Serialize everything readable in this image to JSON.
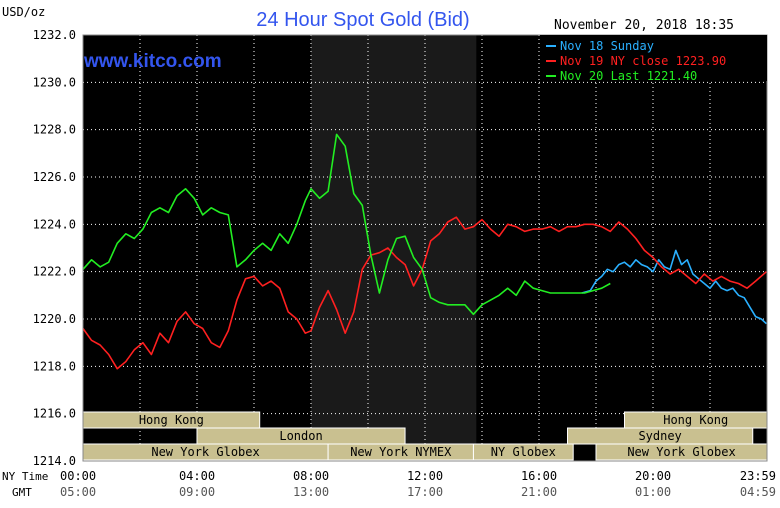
{
  "chart_data": {
    "type": "line",
    "title": "24 Hour Spot Gold (Bid)",
    "watermark": "www.kitco.com",
    "timestamp": "November 20, 2018 18:35",
    "ylabel": "USD/oz",
    "ylim": [
      1214,
      1232
    ],
    "yticks": [
      "1232.0",
      "1230.0",
      "1228.0",
      "1226.0",
      "1224.0",
      "1222.0",
      "1220.0",
      "1218.0",
      "1216.0",
      "1214.0"
    ],
    "xlim": [
      0,
      24
    ],
    "xaxis_row_labels": [
      "NY Time",
      "GMT"
    ],
    "xticks_ny": [
      "00:00",
      "04:00",
      "08:00",
      "12:00",
      "16:00",
      "20:00",
      "23:59"
    ],
    "xticks_gmt": [
      "05:00",
      "09:00",
      "13:00",
      "17:00",
      "21:00",
      "01:00",
      "04:59"
    ],
    "grid": true,
    "legend_position": "top-right",
    "colors": {
      "background": "#000000",
      "frame": "#ffffff",
      "title": "#3355ee",
      "session_fill": "#c9c090",
      "highlight": "#1a1a1a"
    },
    "series": [
      {
        "name": "Nov 18 Sunday",
        "legend": "Nov 18 Sunday",
        "color": "#2ab0ff",
        "x": [
          17.5,
          17.8,
          18.0,
          18.2,
          18.4,
          18.6,
          18.8,
          19.0,
          19.2,
          19.4,
          19.6,
          19.8,
          20.0,
          20.2,
          20.4,
          20.6,
          20.8,
          21.0,
          21.2,
          21.4,
          21.6,
          21.8,
          22.0,
          22.2,
          22.4,
          22.6,
          22.8,
          23.0,
          23.2,
          23.4,
          23.6,
          23.8,
          23.98
        ],
        "y": [
          1221.1,
          1221.2,
          1221.6,
          1221.8,
          1222.1,
          1222.0,
          1222.3,
          1222.4,
          1222.2,
          1222.5,
          1222.3,
          1222.2,
          1222.0,
          1222.5,
          1222.2,
          1222.1,
          1222.9,
          1222.3,
          1222.5,
          1221.9,
          1221.7,
          1221.5,
          1221.3,
          1221.6,
          1221.3,
          1221.2,
          1221.3,
          1221.0,
          1220.9,
          1220.5,
          1220.1,
          1220.0,
          1219.8
        ]
      },
      {
        "name": "Nov 19 NY close",
        "legend": "Nov 19 NY close 1223.90",
        "color": "#ff2020",
        "x": [
          0.0,
          0.3,
          0.6,
          0.9,
          1.2,
          1.5,
          1.8,
          2.1,
          2.4,
          2.7,
          3.0,
          3.3,
          3.6,
          3.9,
          4.2,
          4.5,
          4.8,
          5.1,
          5.4,
          5.7,
          6.0,
          6.3,
          6.6,
          6.9,
          7.2,
          7.5,
          7.8,
          8.0,
          8.3,
          8.6,
          8.9,
          9.2,
          9.5,
          9.8,
          10.1,
          10.4,
          10.7,
          11.0,
          11.3,
          11.6,
          11.9,
          12.2,
          12.5,
          12.8,
          13.1,
          13.4,
          13.7,
          14.0,
          14.3,
          14.6,
          14.9,
          15.2,
          15.5,
          15.8,
          16.1,
          16.4,
          16.7,
          17.0,
          17.3,
          17.6,
          17.9,
          18.2,
          18.5,
          18.8,
          19.1,
          19.4,
          19.7,
          20.0,
          20.3,
          20.6,
          20.9,
          21.2,
          21.5,
          21.8,
          22.1,
          22.4,
          22.7,
          23.0,
          23.3,
          23.6,
          23.98
        ],
        "y": [
          1219.6,
          1219.1,
          1218.9,
          1218.5,
          1217.9,
          1218.2,
          1218.7,
          1219.0,
          1218.5,
          1219.4,
          1219.0,
          1219.9,
          1220.3,
          1219.8,
          1219.6,
          1219.0,
          1218.8,
          1219.5,
          1220.8,
          1221.7,
          1221.8,
          1221.4,
          1221.6,
          1221.3,
          1220.3,
          1220.0,
          1219.4,
          1219.5,
          1220.5,
          1221.2,
          1220.4,
          1219.4,
          1220.3,
          1222.1,
          1222.7,
          1222.8,
          1223.0,
          1222.6,
          1222.3,
          1221.4,
          1222.1,
          1223.3,
          1223.6,
          1224.1,
          1224.3,
          1223.8,
          1223.9,
          1224.2,
          1223.8,
          1223.5,
          1224.0,
          1223.9,
          1223.7,
          1223.8,
          1223.8,
          1223.9,
          1223.7,
          1223.9,
          1223.9,
          1224.0,
          1224.0,
          1223.9,
          1223.7,
          1224.1,
          1223.8,
          1223.4,
          1222.9,
          1222.6,
          1222.2,
          1221.9,
          1222.1,
          1221.8,
          1221.5,
          1221.9,
          1221.6,
          1221.8,
          1221.6,
          1221.5,
          1221.3,
          1221.6,
          1222.0
        ]
      },
      {
        "name": "Nov 20 Last",
        "legend": "Nov 20 Last 1221.40",
        "color": "#22ee22",
        "x": [
          0.0,
          0.3,
          0.6,
          0.9,
          1.2,
          1.5,
          1.8,
          2.1,
          2.4,
          2.7,
          3.0,
          3.3,
          3.6,
          3.9,
          4.2,
          4.5,
          4.8,
          5.1,
          5.4,
          5.7,
          6.0,
          6.3,
          6.6,
          6.9,
          7.2,
          7.5,
          7.8,
          8.0,
          8.3,
          8.6,
          8.9,
          9.2,
          9.5,
          9.8,
          10.1,
          10.4,
          10.7,
          11.0,
          11.3,
          11.6,
          11.9,
          12.2,
          12.5,
          12.8,
          13.1,
          13.4,
          13.7,
          14.0,
          14.3,
          14.6,
          14.9,
          15.2,
          15.5,
          15.8,
          16.1,
          16.4,
          16.7,
          17.0,
          17.3,
          17.6,
          17.9,
          18.2,
          18.5
        ],
        "y": [
          1222.1,
          1222.5,
          1222.2,
          1222.4,
          1223.2,
          1223.6,
          1223.4,
          1223.8,
          1224.5,
          1224.7,
          1224.5,
          1225.2,
          1225.5,
          1225.1,
          1224.4,
          1224.7,
          1224.5,
          1224.4,
          1222.2,
          1222.5,
          1222.9,
          1223.2,
          1222.9,
          1223.6,
          1223.2,
          1224.0,
          1225.0,
          1225.5,
          1225.1,
          1225.4,
          1227.8,
          1227.3,
          1225.3,
          1224.8,
          1222.7,
          1221.1,
          1222.5,
          1223.4,
          1223.5,
          1222.6,
          1222.1,
          1220.9,
          1220.7,
          1220.6,
          1220.6,
          1220.6,
          1220.2,
          1220.6,
          1220.8,
          1221.0,
          1221.3,
          1221.0,
          1221.6,
          1221.3,
          1221.2,
          1221.1,
          1221.1,
          1221.1,
          1221.1,
          1221.1,
          1221.2,
          1221.3,
          1221.5
        ]
      }
    ],
    "sessions": [
      {
        "label": "Hong Kong",
        "row": 0,
        "start": 0.0,
        "end": 6.2
      },
      {
        "label": "London",
        "row": 1,
        "start": 4.0,
        "end": 11.3
      },
      {
        "label": "New York Globex",
        "row": 2,
        "start": 0.0,
        "end": 8.6
      },
      {
        "label": "New York NYMEX",
        "row": 2,
        "start": 8.6,
        "end": 13.7
      },
      {
        "label": "NY Globex",
        "row": 2,
        "start": 13.7,
        "end": 17.2
      },
      {
        "label": "Hong Kong",
        "row": 0,
        "start": 19.0,
        "end": 24.0
      },
      {
        "label": "Sydney",
        "row": 1,
        "start": 17.0,
        "end": 23.5
      },
      {
        "label": "New York Globex",
        "row": 2,
        "start": 18.0,
        "end": 24.0
      }
    ],
    "highlight_range": [
      8.0,
      13.8
    ]
  }
}
